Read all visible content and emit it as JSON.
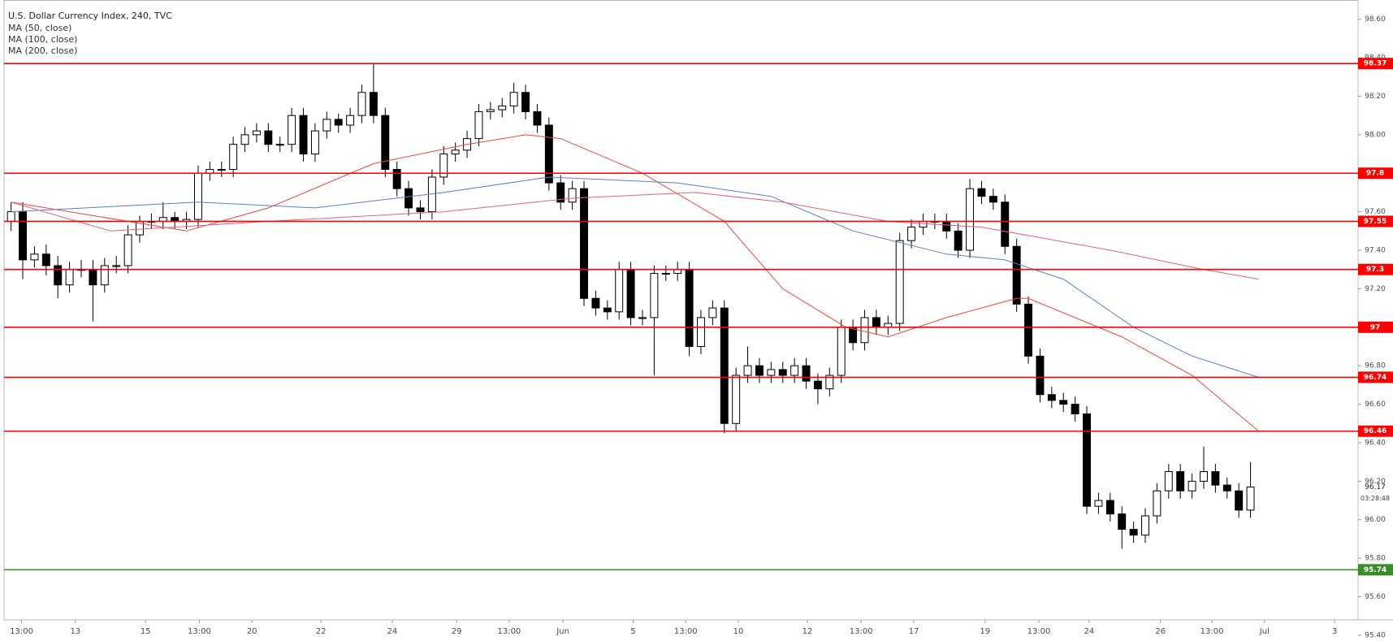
{
  "chart_data": {
    "type": "candlestick",
    "title": "U.S. Dollar Currency Index, 240, TVC",
    "up_color": "#ffffff",
    "down_color": "#000000",
    "candles": {
      "open": [
        97.55,
        97.6,
        97.35,
        97.38,
        97.32,
        97.22,
        97.3,
        97.3,
        97.22,
        97.32,
        97.32,
        97.48,
        97.55,
        97.55,
        97.57,
        97.55,
        97.56,
        97.8,
        97.82,
        97.82,
        97.95,
        98.0,
        98.02,
        97.95,
        97.95,
        98.1,
        97.9,
        98.02,
        98.08,
        98.05,
        98.1,
        98.22,
        98.1,
        97.82,
        97.72,
        97.62,
        97.6,
        97.78,
        97.9,
        97.92,
        97.98,
        98.12,
        98.13,
        98.15,
        98.22,
        98.12,
        98.05,
        97.75,
        97.65,
        97.72,
        97.15,
        97.1,
        97.08,
        97.3,
        97.05,
        97.05,
        97.28,
        97.28,
        97.3,
        96.9,
        97.05,
        97.1,
        96.5,
        96.75,
        96.8,
        96.75,
        96.78,
        96.75,
        96.8,
        96.72,
        96.68,
        96.75,
        97.0,
        96.92,
        97.05,
        97.0,
        97.02,
        97.45,
        97.52,
        97.55,
        97.55,
        97.5,
        97.4,
        97.72,
        97.68,
        97.65,
        97.42,
        97.12,
        96.85,
        96.65,
        96.62,
        96.6,
        96.55,
        96.07,
        96.1,
        96.03,
        95.95,
        95.92,
        96.02,
        96.15,
        96.25,
        96.15,
        96.2,
        96.25,
        96.18,
        96.15,
        96.05
      ],
      "high": [
        97.65,
        97.65,
        97.42,
        97.43,
        97.37,
        97.34,
        97.35,
        97.35,
        97.36,
        97.37,
        97.53,
        97.58,
        97.59,
        97.65,
        97.6,
        97.6,
        97.84,
        97.86,
        97.86,
        97.99,
        98.04,
        98.06,
        98.06,
        97.99,
        98.14,
        98.14,
        98.06,
        98.12,
        98.11,
        98.14,
        98.26,
        98.37,
        98.14,
        97.86,
        97.76,
        97.66,
        97.82,
        97.94,
        97.96,
        98.02,
        98.16,
        98.17,
        98.19,
        98.27,
        98.26,
        98.16,
        98.09,
        97.79,
        97.76,
        97.76,
        97.19,
        97.14,
        97.34,
        97.34,
        97.09,
        97.32,
        97.32,
        97.34,
        97.34,
        97.09,
        97.14,
        97.14,
        96.79,
        96.9,
        96.84,
        96.82,
        96.82,
        96.84,
        96.84,
        96.76,
        96.79,
        97.04,
        97.04,
        97.09,
        97.09,
        97.06,
        97.49,
        97.56,
        97.59,
        97.59,
        97.59,
        97.54,
        97.77,
        97.76,
        97.72,
        97.69,
        97.46,
        97.16,
        96.89,
        96.69,
        96.66,
        96.64,
        96.59,
        96.14,
        96.14,
        96.07,
        95.99,
        96.06,
        96.19,
        96.29,
        96.29,
        96.24,
        96.38,
        96.29,
        96.22,
        96.19,
        96.3
      ],
      "low": [
        97.5,
        97.25,
        97.31,
        97.27,
        97.15,
        97.18,
        97.26,
        97.03,
        97.18,
        97.28,
        97.28,
        97.44,
        97.51,
        97.51,
        97.51,
        97.51,
        97.52,
        97.76,
        97.78,
        97.78,
        97.91,
        97.96,
        97.91,
        97.91,
        97.91,
        97.86,
        97.86,
        97.98,
        98.01,
        98.01,
        98.06,
        98.06,
        97.78,
        97.68,
        97.58,
        97.56,
        97.56,
        97.74,
        97.86,
        97.88,
        97.94,
        98.08,
        98.09,
        98.11,
        98.08,
        98.01,
        97.71,
        97.61,
        97.61,
        97.11,
        97.06,
        97.04,
        97.04,
        97.01,
        97.01,
        96.75,
        97.24,
        97.24,
        96.85,
        96.86,
        97.01,
        96.45,
        96.46,
        96.71,
        96.71,
        96.71,
        96.71,
        96.71,
        96.68,
        96.6,
        96.64,
        96.71,
        96.88,
        96.88,
        96.96,
        96.96,
        96.98,
        97.41,
        97.48,
        97.51,
        97.46,
        97.36,
        97.36,
        97.64,
        97.61,
        97.38,
        97.08,
        96.81,
        96.61,
        96.58,
        96.56,
        96.51,
        96.03,
        96.03,
        95.99,
        95.85,
        95.88,
        95.88,
        95.98,
        96.11,
        96.11,
        96.11,
        96.16,
        96.14,
        96.11,
        96.01,
        96.01
      ],
      "close": [
        97.6,
        97.35,
        97.38,
        97.32,
        97.22,
        97.3,
        97.3,
        97.22,
        97.32,
        97.32,
        97.48,
        97.55,
        97.55,
        97.57,
        97.55,
        97.56,
        97.8,
        97.82,
        97.82,
        97.95,
        98.0,
        98.02,
        97.95,
        97.95,
        98.1,
        97.9,
        98.02,
        98.08,
        98.05,
        98.1,
        98.22,
        98.1,
        97.82,
        97.72,
        97.62,
        97.6,
        97.78,
        97.9,
        97.92,
        97.98,
        98.12,
        98.13,
        98.15,
        98.22,
        98.12,
        98.05,
        97.75,
        97.65,
        97.72,
        97.15,
        97.1,
        97.08,
        97.3,
        97.05,
        97.05,
        97.28,
        97.28,
        97.3,
        96.9,
        97.05,
        97.1,
        96.5,
        96.75,
        96.8,
        96.75,
        96.78,
        96.75,
        96.8,
        96.72,
        96.68,
        96.75,
        97.0,
        96.92,
        97.05,
        97.0,
        97.02,
        97.45,
        97.52,
        97.55,
        97.55,
        97.5,
        97.4,
        97.72,
        97.68,
        97.65,
        97.42,
        97.12,
        96.85,
        96.65,
        96.62,
        96.6,
        96.55,
        96.07,
        96.1,
        96.03,
        95.95,
        95.92,
        96.02,
        96.15,
        96.25,
        96.15,
        96.2,
        96.25,
        96.18,
        96.15,
        96.05,
        96.17
      ]
    },
    "moving_averages": [
      {
        "name": "MA (50, close)",
        "color": "#f0463c",
        "x": [
          0,
          15,
          22,
          31,
          39,
          44,
          47,
          54,
          61,
          66,
          71.4,
          75,
          80,
          86,
          87,
          95,
          101,
          106.7
        ],
        "values": [
          97.65,
          97.5,
          97.62,
          97.85,
          97.95,
          98.0,
          97.98,
          97.8,
          97.55,
          97.2,
          97.0,
          96.95,
          97.05,
          97.15,
          97.15,
          96.95,
          96.75,
          96.46
        ]
      },
      {
        "name": "MA (100, close)",
        "color": "#5b7fc7",
        "x": [
          0,
          16,
          26,
          37,
          46,
          57,
          65,
          72,
          80,
          85,
          90,
          96,
          101,
          106.7
        ],
        "values": [
          97.6,
          97.65,
          97.62,
          97.7,
          97.78,
          97.75,
          97.68,
          97.5,
          97.38,
          97.35,
          97.25,
          97.0,
          96.85,
          96.74
        ]
      },
      {
        "name": "MA (200, close)",
        "color": "#e8607f",
        "x": [
          0,
          8.5,
          22,
          37,
          48,
          58.5,
          66,
          75,
          83,
          94,
          102,
          106.7
        ],
        "values": [
          97.65,
          97.5,
          97.55,
          97.6,
          97.67,
          97.7,
          97.65,
          97.55,
          97.52,
          97.4,
          97.3,
          97.25
        ]
      }
    ],
    "levels": [
      {
        "value": 98.37,
        "color": "#ff0000"
      },
      {
        "value": 97.8,
        "color": "#ff0000"
      },
      {
        "value": 97.55,
        "color": "#ff0000"
      },
      {
        "value": 97.3,
        "color": "#ff0000"
      },
      {
        "value": 97.0,
        "color": "#ff0000"
      },
      {
        "value": 96.74,
        "color": "#ff0000"
      },
      {
        "value": 96.46,
        "color": "#ff0000"
      },
      {
        "value": 95.74,
        "color": "#3a8c2a"
      }
    ],
    "last_price": 96.17,
    "countdown": "03:28:48",
    "xlim": [
      -0.6,
      115.2
    ],
    "xticks": [
      {
        "value": 0.9,
        "label": "13:00"
      },
      {
        "value": 5.5,
        "label": "13"
      },
      {
        "value": 11.5,
        "label": "15"
      },
      {
        "value": 16.1,
        "label": "13:00"
      },
      {
        "value": 20.6,
        "label": "20"
      },
      {
        "value": 26.5,
        "label": "22"
      },
      {
        "value": 32.6,
        "label": "24"
      },
      {
        "value": 38.1,
        "label": "29"
      },
      {
        "value": 42.6,
        "label": "13:00"
      },
      {
        "value": 47.2,
        "label": "Jun"
      },
      {
        "value": 53.2,
        "label": "5"
      },
      {
        "value": 57.7,
        "label": "13:00"
      },
      {
        "value": 62.2,
        "label": "10"
      },
      {
        "value": 68.1,
        "label": "12"
      },
      {
        "value": 72.7,
        "label": "13:00"
      },
      {
        "value": 77.2,
        "label": "17"
      },
      {
        "value": 83.3,
        "label": "19"
      },
      {
        "value": 87.9,
        "label": "13:00"
      },
      {
        "value": 92.2,
        "label": "24"
      },
      {
        "value": 98.3,
        "label": "26"
      },
      {
        "value": 102.7,
        "label": "13:00"
      },
      {
        "value": 107.2,
        "label": "Jul"
      },
      {
        "value": 113.2,
        "label": "3"
      }
    ],
    "ylim": [
      95.37,
      98.7
    ],
    "yticks": [
      {
        "value": 95.4,
        "label": "95.40"
      },
      {
        "value": 95.6,
        "label": "95.60"
      },
      {
        "value": 95.8,
        "label": "95.80"
      },
      {
        "value": 96.0,
        "label": "96.00"
      },
      {
        "value": 96.2,
        "label": "96.20"
      },
      {
        "value": 96.4,
        "label": "96.40"
      },
      {
        "value": 96.6,
        "label": "96.60"
      },
      {
        "value": 96.8,
        "label": "96.80"
      },
      {
        "value": 97.0,
        "label": "97.00"
      },
      {
        "value": 97.2,
        "label": "97.20"
      },
      {
        "value": 97.4,
        "label": "97.40"
      },
      {
        "value": 97.6,
        "label": "97.60"
      },
      {
        "value": 97.8,
        "label": "97.80"
      },
      {
        "value": 98.0,
        "label": "98.00"
      },
      {
        "value": 98.2,
        "label": "98.20"
      },
      {
        "value": 98.4,
        "label": "98.40"
      },
      {
        "value": 98.6,
        "label": "98.60"
      }
    ]
  }
}
